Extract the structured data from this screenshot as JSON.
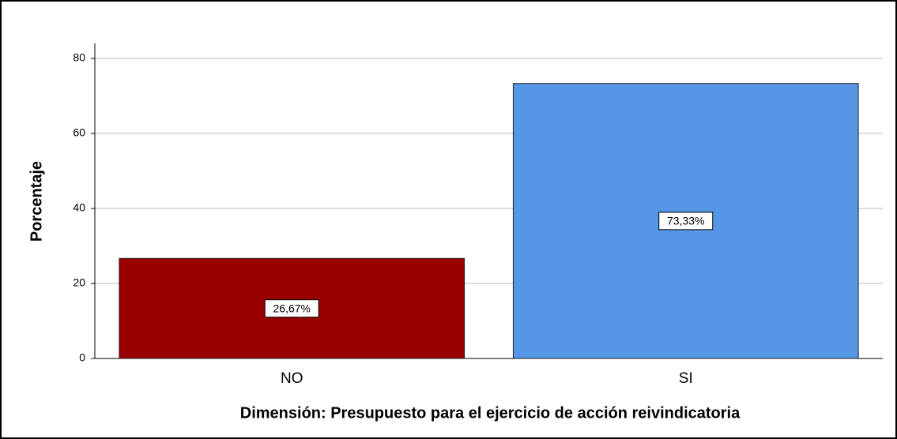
{
  "chart_data": {
    "type": "bar",
    "x_label": "Dimensión: Presupuesto para el ejercicio de acción reivindicatoria",
    "y_label": "Porcentaje",
    "categories": [
      "NO",
      "SI"
    ],
    "values": [
      26.67,
      73.33
    ],
    "value_labels": [
      "26,67%",
      "73,33%"
    ],
    "colors": [
      "#990000",
      "#5596e6"
    ],
    "ylim": [
      0,
      84
    ],
    "yticks": [
      0,
      20,
      40,
      60,
      80
    ],
    "grid": true
  }
}
